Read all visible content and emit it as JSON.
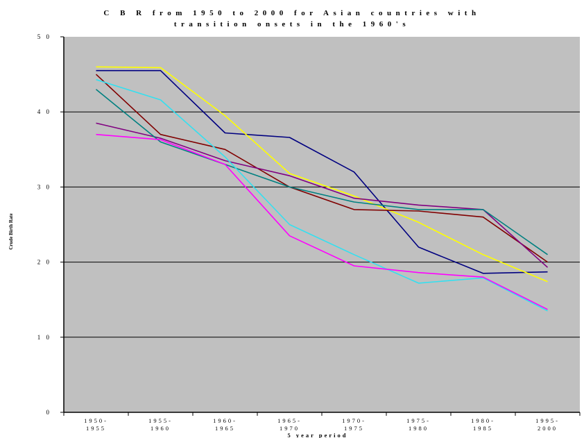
{
  "chart_data": {
    "type": "line",
    "title_line1": "C B R  from  1950  to  2000  for Asian countries with",
    "title_line2": "transition onsets in the 1960's",
    "ylabel": "Crude Birth Rate",
    "xlabel": "5 year period",
    "ylim": [
      0,
      50
    ],
    "y_ticks": [
      "0",
      "1 0",
      "2 0",
      "3 0",
      "4 0",
      "5 0"
    ],
    "grid": "horizontal",
    "plot_background": "#c0c0c0",
    "categories": [
      [
        "1950-",
        "1955"
      ],
      [
        "1955-",
        "1960"
      ],
      [
        "1960-",
        "1965"
      ],
      [
        "1965-",
        "1970"
      ],
      [
        "1970-",
        "1975"
      ],
      [
        "1975-",
        "1980"
      ],
      [
        "1980-",
        "1985"
      ],
      [
        "1995-",
        "2000"
      ]
    ],
    "series": [
      {
        "color": "#000080",
        "values": [
          45.5,
          45.5,
          37.2,
          36.6,
          32.0,
          22.0,
          18.5,
          18.7
        ]
      },
      {
        "color": "#ffff00",
        "values": [
          46.0,
          45.9,
          39.5,
          31.8,
          28.8,
          25.3,
          21.0,
          17.4
        ]
      },
      {
        "color": "#800000",
        "values": [
          45.0,
          37.0,
          35.0,
          30.0,
          27.0,
          26.8,
          26.0,
          20.0
        ]
      },
      {
        "color": "#800080",
        "values": [
          38.5,
          36.5,
          33.5,
          31.5,
          28.5,
          27.6,
          27.0,
          19.3
        ]
      },
      {
        "color": "#008080",
        "values": [
          43.0,
          36.0,
          33.0,
          30.0,
          28.0,
          27.0,
          27.0,
          21.0
        ]
      },
      {
        "color": "#33e0f0",
        "values": [
          44.3,
          41.6,
          34.0,
          25.0,
          21.0,
          17.2,
          17.9,
          13.5
        ]
      },
      {
        "color": "#ff00ff",
        "values": [
          37.0,
          36.3,
          33.0,
          23.5,
          19.5,
          18.6,
          18.0,
          13.7
        ]
      }
    ]
  }
}
